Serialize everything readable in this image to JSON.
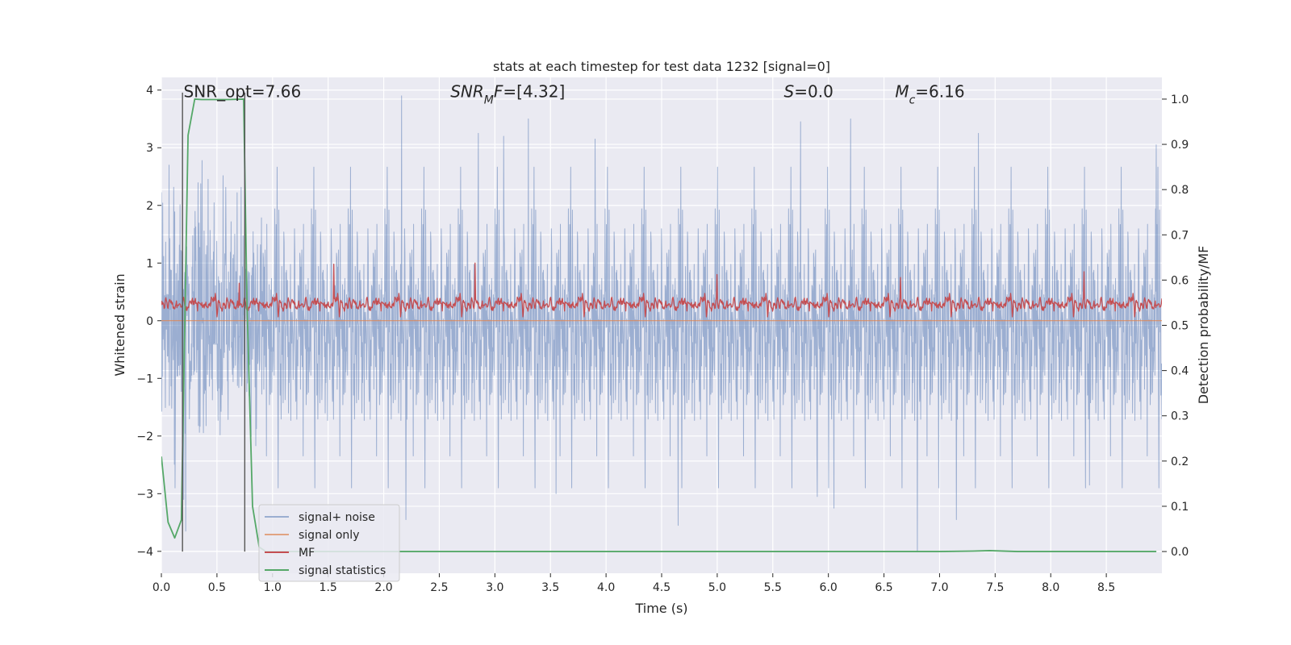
{
  "chart_data": {
    "type": "line",
    "title": "stats at each timestep for test data 1232 [signal=0]",
    "xlabel": "Time (s)",
    "ylabel_left": "Whitened strain",
    "ylabel_right": "Detection probability/MF",
    "xlim": [
      0.0,
      9.0
    ],
    "ylim_left": [
      -4.38,
      4.22
    ],
    "ylim_right": [
      -0.048,
      1.048
    ],
    "xticks": [
      "0.0",
      "0.5",
      "1.0",
      "1.5",
      "2.0",
      "2.5",
      "3.0",
      "3.5",
      "4.0",
      "4.5",
      "5.0",
      "5.5",
      "6.0",
      "6.5",
      "7.0",
      "7.5",
      "8.0",
      "8.5"
    ],
    "yticks_left": [
      "−4",
      "−3",
      "−2",
      "−1",
      "0",
      "1",
      "2",
      "3",
      "4"
    ],
    "yticks_right": [
      "0.0",
      "0.1",
      "0.2",
      "0.3",
      "0.4",
      "0.5",
      "0.6",
      "0.7",
      "0.8",
      "0.9",
      "1.0"
    ],
    "grid": true,
    "legend_position": "lower-left",
    "annotations": [
      {
        "x": 0.2,
        "y": 3.88,
        "parts": [
          {
            "text": "SNR_opt=7.66",
            "italic": false
          }
        ]
      },
      {
        "x": 2.6,
        "y": 3.88,
        "parts": [
          {
            "text": "SNR",
            "italic": true
          },
          {
            "text": "M",
            "italic": true,
            "sub": true
          },
          {
            "text": "F",
            "italic": true
          },
          {
            "text": "=[4.32]",
            "italic": false
          }
        ]
      },
      {
        "x": 5.6,
        "y": 3.88,
        "parts": [
          {
            "text": "S",
            "italic": true
          },
          {
            "text": "=0.0",
            "italic": false
          }
        ]
      },
      {
        "x": 6.6,
        "y": 3.88,
        "parts": [
          {
            "text": "M",
            "italic": true
          },
          {
            "text": "c",
            "italic": true,
            "sub": true
          },
          {
            "text": "=6.16",
            "italic": false
          }
        ]
      }
    ],
    "vertical_lines": [
      0.19,
      0.75
    ],
    "series": [
      {
        "name": "signal+ noise",
        "axis": "left",
        "color": "#4c72b0",
        "opacity": 0.5,
        "x_range": [
          0.0,
          9.0
        ],
        "n_points": 3000,
        "envelope_sigma": 1.0,
        "peaks": [
          [
            0.07,
            2.7
          ],
          [
            0.2,
            -3.1
          ],
          [
            0.22,
            -3.65
          ],
          [
            2.16,
            3.9
          ],
          [
            2.2,
            -3.45
          ],
          [
            2.85,
            3.25
          ],
          [
            3.08,
            3.2
          ],
          [
            3.3,
            3.5
          ],
          [
            3.55,
            -3.0
          ],
          [
            3.9,
            3.15
          ],
          [
            4.65,
            -3.55
          ],
          [
            5.75,
            3.45
          ],
          [
            5.9,
            -3.05
          ],
          [
            6.05,
            -3.25
          ],
          [
            6.2,
            3.5
          ],
          [
            6.8,
            -4.0
          ],
          [
            7.15,
            -3.45
          ],
          [
            7.35,
            3.25
          ],
          [
            8.35,
            -2.85
          ],
          [
            8.95,
            3.05
          ]
        ]
      },
      {
        "name": "signal only",
        "axis": "left",
        "color": "#dd8452",
        "x": [
          0.0,
          9.0
        ],
        "y": [
          0.0,
          0.0
        ]
      },
      {
        "name": "MF",
        "axis": "left",
        "color": "#c44e52",
        "x_range": [
          0.0,
          9.0
        ],
        "n_points": 1800,
        "center": 0.3,
        "amplitude": 0.2,
        "peaks": [
          [
            0.7,
            0.65
          ],
          [
            1.55,
            0.98
          ],
          [
            2.82,
            1.0
          ],
          [
            5.0,
            0.8
          ],
          [
            6.65,
            0.75
          ],
          [
            8.3,
            0.85
          ]
        ]
      },
      {
        "name": "signal statistics",
        "axis": "right",
        "color": "#55a868",
        "x": [
          0.0,
          0.06,
          0.12,
          0.18,
          0.24,
          0.3,
          0.36,
          0.6,
          0.74,
          0.77,
          0.82,
          0.88,
          0.94,
          1.5,
          3.0,
          5.0,
          7.0,
          7.3,
          7.45,
          7.7,
          8.95
        ],
        "y": [
          0.21,
          0.065,
          0.03,
          0.07,
          0.92,
          1.0,
          0.999,
          0.999,
          1.0,
          0.55,
          0.1,
          0.01,
          0.0,
          0.0,
          0.0,
          0.0,
          0.0,
          0.001,
          0.002,
          0.0,
          0.0
        ]
      }
    ]
  }
}
